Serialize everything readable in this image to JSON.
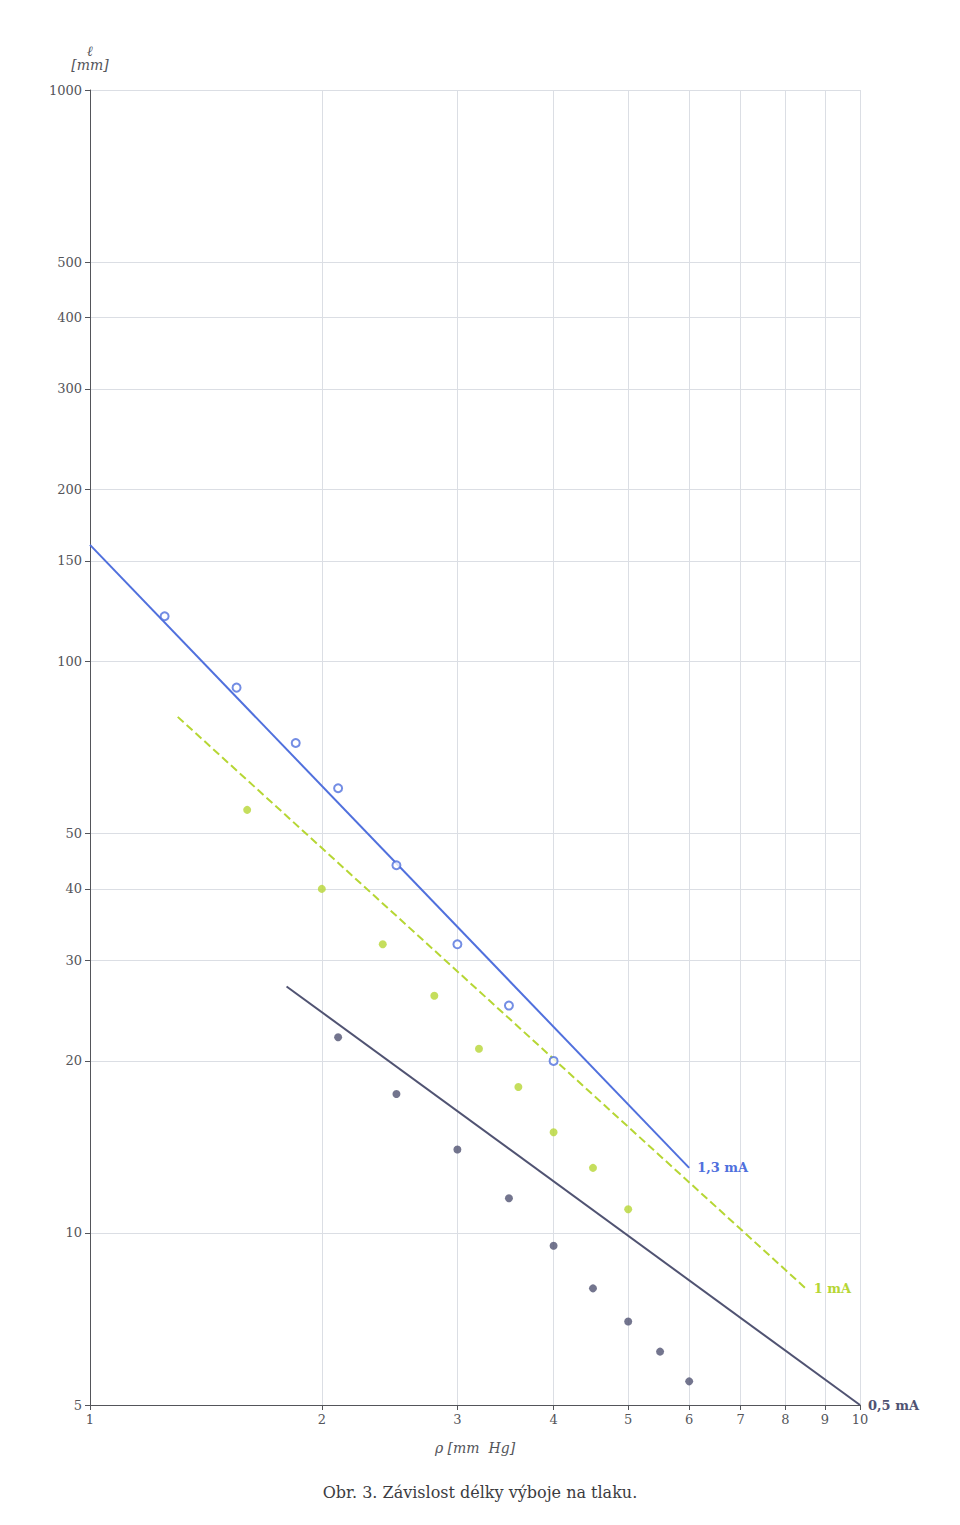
{
  "chart_data": {
    "type": "scatter",
    "title": "Obr. 3. Závislost délky výboje na tlaku.",
    "xlabel": "ρ [mm  Hg]",
    "ylabel": "ℓ\n[mm]",
    "log": true,
    "grid": true,
    "xlim": [
      1,
      10
    ],
    "ylim": [
      5,
      1000
    ],
    "xticks": [
      1,
      2,
      3,
      4,
      5,
      6,
      7,
      8,
      9,
      10
    ],
    "yticks": [
      5,
      10,
      20,
      30,
      40,
      50,
      100,
      150,
      200,
      300,
      400,
      500,
      1000
    ],
    "series": [
      {
        "name": "1,3 mA",
        "marker": "open_circle",
        "line_style": "solid",
        "x": [
          1.25,
          1.55,
          1.85,
          2.1,
          2.5,
          3.0,
          3.5,
          4.0
        ],
        "values": [
          120,
          90,
          72,
          60,
          44,
          32,
          25,
          20
        ],
        "fit": {
          "x": [
            1.0,
            6.0
          ],
          "y": [
            160,
            13
          ]
        }
      },
      {
        "name": "1 mA",
        "marker": "circle",
        "line_style": "dashed",
        "x": [
          1.6,
          2.0,
          2.4,
          2.8,
          3.2,
          3.6,
          4.0,
          4.5,
          5.0
        ],
        "values": [
          55,
          40,
          32,
          26,
          21,
          18,
          15,
          13,
          11
        ],
        "fit": {
          "x": [
            1.3,
            8.5
          ],
          "y": [
            80,
            8
          ]
        }
      },
      {
        "name": "0,5 mA",
        "marker": "circle",
        "line_style": "solid",
        "x": [
          2.1,
          2.5,
          3.0,
          3.5,
          4.0,
          4.5,
          5.0,
          5.5,
          6.0
        ],
        "values": [
          22,
          17.5,
          14,
          11.5,
          9.5,
          8.0,
          7.0,
          6.2,
          5.5
        ],
        "fit": {
          "x": [
            1.8,
            10.0
          ],
          "y": [
            27,
            5
          ]
        }
      }
    ]
  }
}
